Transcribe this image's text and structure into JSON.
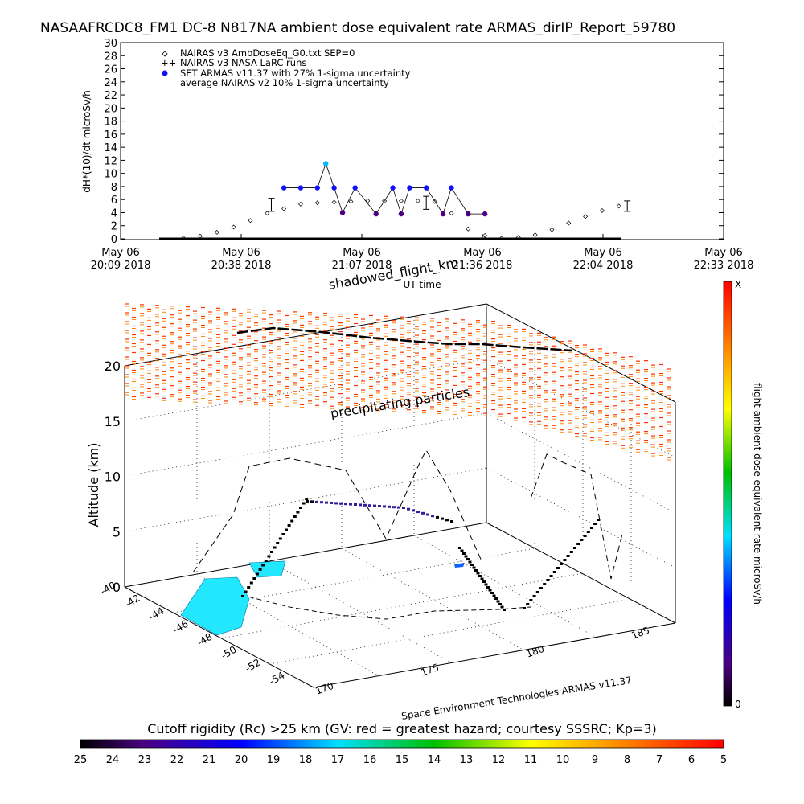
{
  "title": "NASAAFRCDC8_FM1 DC-8    N817NA ambient dose equivalent rate ARMAS_dirIP_Report_59780",
  "chart_data": [
    {
      "type": "scatter",
      "ylabel": "dH*(10)/dt microSv/h",
      "xlabel": "UT time",
      "ylim": [
        0,
        30
      ],
      "yticks": [
        0,
        2,
        4,
        6,
        8,
        10,
        12,
        14,
        16,
        18,
        20,
        22,
        24,
        26,
        28,
        30
      ],
      "x_ticks": [
        {
          "line1": "May 06",
          "line2": "20:09 2018"
        },
        {
          "line1": "May 06",
          "line2": "20:38 2018"
        },
        {
          "line1": "May 06",
          "line2": "21:07 2018"
        },
        {
          "line1": "May 06",
          "line2": "21:36 2018"
        },
        {
          "line1": "May 06",
          "line2": "22:04 2018"
        },
        {
          "line1": "May 06",
          "line2": "22:33 2018"
        }
      ],
      "legend": [
        {
          "symbol": "diamond",
          "label": "NAIRAS v3 AmbDoseEq_G0.txt SEP=0"
        },
        {
          "symbol": "plus",
          "label": "NAIRAS v3 NASA LaRC runs"
        },
        {
          "symbol": "dot",
          "label": "SET ARMAS v11.37 with 27% 1-sigma uncertainty"
        },
        {
          "symbol": "none",
          "label": "average NAIRAS v2 10% 1-sigma uncertainty"
        }
      ],
      "legend_position": "top-left",
      "series": [
        {
          "name": "NAIRAS v3 AmbDoseEq_G0.txt SEP=0",
          "marker": "diamond",
          "x": [
            "2018-05-06 20:24",
            "2018-05-06 20:28",
            "2018-05-06 20:32",
            "2018-05-06 20:36",
            "2018-05-06 20:40",
            "2018-05-06 20:44",
            "2018-05-06 20:48",
            "2018-05-06 20:52",
            "2018-05-06 20:56",
            "2018-05-06 21:00",
            "2018-05-06 21:04",
            "2018-05-06 21:08",
            "2018-05-06 21:12",
            "2018-05-06 21:16",
            "2018-05-06 21:20",
            "2018-05-06 21:24",
            "2018-05-06 21:28",
            "2018-05-06 21:32",
            "2018-05-06 21:36",
            "2018-05-06 21:40",
            "2018-05-06 21:44",
            "2018-05-06 21:48",
            "2018-05-06 21:52",
            "2018-05-06 21:56",
            "2018-05-06 22:00",
            "2018-05-06 22:04",
            "2018-05-06 22:08"
          ],
          "y": [
            0.1,
            0.4,
            1.0,
            1.8,
            2.8,
            3.9,
            4.6,
            5.3,
            5.5,
            5.6,
            5.7,
            5.8,
            5.8,
            5.8,
            5.8,
            5.7,
            3.9,
            1.5,
            0.5,
            0.1,
            0.2,
            0.6,
            1.4,
            2.4,
            3.4,
            4.3,
            5.0
          ]
        },
        {
          "name": "NAIRAS v3 NASA LaRC runs",
          "marker": "plus",
          "x": [
            "2018-05-06 20:45",
            "2018-05-06 21:22",
            "2018-05-06 22:10"
          ],
          "y": [
            5.2,
            5.5,
            5.0
          ],
          "error": [
            1.0,
            1.0,
            0.8
          ]
        },
        {
          "name": "SET ARMAS v11.37 with 27% 1-sigma uncertainty",
          "marker": "dot",
          "x": [
            "2018-05-06 20:48",
            "2018-05-06 20:52",
            "2018-05-06 20:56",
            "2018-05-06 20:58",
            "2018-05-06 21:00",
            "2018-05-06 21:02",
            "2018-05-06 21:05",
            "2018-05-06 21:10",
            "2018-05-06 21:14",
            "2018-05-06 21:16",
            "2018-05-06 21:18",
            "2018-05-06 21:22",
            "2018-05-06 21:26",
            "2018-05-06 21:28",
            "2018-05-06 21:32",
            "2018-05-06 21:36"
          ],
          "y": [
            7.8,
            7.8,
            7.8,
            11.5,
            7.8,
            4.0,
            7.8,
            3.8,
            7.8,
            3.8,
            7.8,
            7.8,
            3.8,
            7.8,
            3.8,
            3.8
          ]
        }
      ]
    },
    {
      "type": "scatter",
      "subtype": "3d-flight-track",
      "zlabel": "Altitude (km)",
      "zlim": [
        0,
        20
      ],
      "zticks": [
        0,
        5,
        10,
        15,
        20
      ],
      "y_ticks": [
        "-40",
        "-42",
        "-44",
        "-46",
        "-48",
        "-50",
        "-52",
        "-54"
      ],
      "x_ticks": [
        "170",
        "175",
        "180",
        "185"
      ],
      "annotations": [
        "shadowed_flight_km",
        "precipitating particles",
        "Space Environment Technologies ARMAS v11.37"
      ],
      "colorbar": {
        "label": "flight ambient dose equivalent rate microSv/h",
        "top_label": "X",
        "bottom_label": "0"
      }
    },
    {
      "type": "heatmap",
      "subtype": "colorbar",
      "label": "Cutoff rigidity (Rc) >25 km (GV: red = greatest hazard; courtesy SSSRC; Kp=3)",
      "ticks": [
        "25",
        "24",
        "23",
        "22",
        "21",
        "20",
        "19",
        "18",
        "17",
        "16",
        "15",
        "14",
        "13",
        "12",
        "11",
        "10",
        "9",
        "8",
        "7",
        "6",
        "5"
      ]
    }
  ]
}
